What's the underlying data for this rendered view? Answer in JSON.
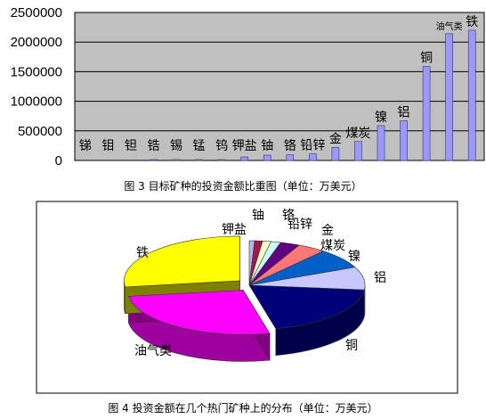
{
  "chart_data": [
    {
      "type": "bar",
      "categories": [
        "锑",
        "钼",
        "钽",
        "锆",
        "锡",
        "锰",
        "钨",
        "钾盐",
        "铀",
        "铬",
        "铅锌",
        "金",
        "煤炭",
        "镍",
        "铝",
        "铜",
        "油气类",
        "铁"
      ],
      "values": [
        0,
        0,
        0,
        3000,
        3000,
        3000,
        5000,
        60000,
        90000,
        95000,
        110000,
        220000,
        320000,
        590000,
        670000,
        1590000,
        2140000,
        2200000
      ],
      "ylim": [
        0,
        2500000
      ],
      "yticks": [
        "0",
        "500000",
        "1000000",
        "1500000",
        "2000000",
        "2500000"
      ],
      "grid": true,
      "caption": "图 3 目标矿种的投资金额比重图（单位：万美元）"
    },
    {
      "type": "pie",
      "labels": [
        "钾盐",
        "铀",
        "铬",
        "铅锌",
        "金",
        "煤炭",
        "镍",
        "铝",
        "铜",
        "油气类",
        "铁"
      ],
      "values": [
        60000,
        90000,
        95000,
        110000,
        220000,
        320000,
        590000,
        670000,
        1590000,
        2140000,
        2200000
      ],
      "colors": [
        "#b8b8e8",
        "#a01850",
        "#ffffc8",
        "#c8ffff",
        "#600080",
        "#ff7878",
        "#0060c8",
        "#c8c8ff",
        "#000078",
        "#ff00ff",
        "#ffff00"
      ],
      "caption": "图 4 投资金额在几个热门矿种上的分布（单位：万美元）"
    }
  ],
  "colors": {
    "plot_bg": "#c0c0c0",
    "bar": "#9999ff"
  }
}
